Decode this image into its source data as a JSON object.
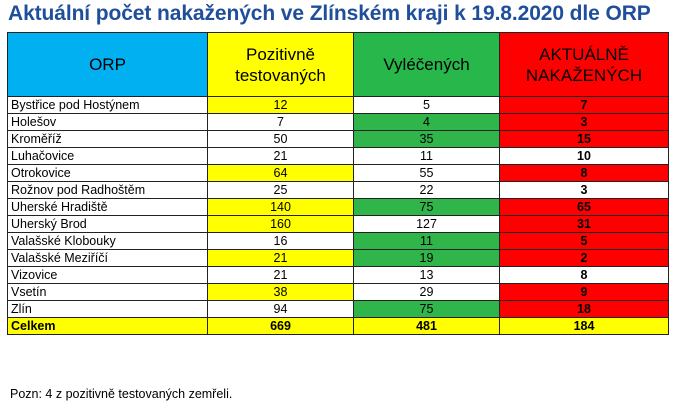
{
  "title": "Aktuální počet nakažených ve Zlínském kraji k 19.8.2020 dle ORP",
  "headers": {
    "orp": "ORP",
    "pozitivne_line1": "Pozitivně",
    "pozitivne_line2": "testovaných",
    "vylecenych": "Vyléčených",
    "aktualne_line1": "AKTUÁLNĚ",
    "aktualne_line2": "NAKAŽENÝCH"
  },
  "colors": {
    "yellow": "#ffff00",
    "green": "#2fb54a",
    "red": "#ff0000",
    "white": "#ffffff",
    "header_blue": "#00b0f0",
    "title_blue": "#1f4e9a"
  },
  "rows": [
    {
      "name": "Bystřice pod Hostýnem",
      "pozitivne": "12",
      "vylecenych": "5",
      "aktualne": "7",
      "pos_color": "yellow",
      "vyl_color": "white",
      "akt_color": "red"
    },
    {
      "name": "Holešov",
      "pozitivne": "7",
      "vylecenych": "4",
      "aktualne": "3",
      "pos_color": "white",
      "vyl_color": "green",
      "akt_color": "red"
    },
    {
      "name": "Kroměříž",
      "pozitivne": "50",
      "vylecenych": "35",
      "aktualne": "15",
      "pos_color": "white",
      "vyl_color": "green",
      "akt_color": "red"
    },
    {
      "name": "Luhačovice",
      "pozitivne": "21",
      "vylecenych": "11",
      "aktualne": "10",
      "pos_color": "white",
      "vyl_color": "white",
      "akt_color": "white"
    },
    {
      "name": "Otrokovice",
      "pozitivne": "64",
      "vylecenych": "55",
      "aktualne": "8",
      "pos_color": "yellow",
      "vyl_color": "white",
      "akt_color": "red"
    },
    {
      "name": "Rožnov pod Radhoštěm",
      "pozitivne": "25",
      "vylecenych": "22",
      "aktualne": "3",
      "pos_color": "white",
      "vyl_color": "white",
      "akt_color": "white"
    },
    {
      "name": "Uherské Hradiště",
      "pozitivne": "140",
      "vylecenych": "75",
      "aktualne": "65",
      "pos_color": "yellow",
      "vyl_color": "green",
      "akt_color": "red"
    },
    {
      "name": "Uherský Brod",
      "pozitivne": "160",
      "vylecenych": "127",
      "aktualne": "31",
      "pos_color": "yellow",
      "vyl_color": "white",
      "akt_color": "red"
    },
    {
      "name": "Valašské Klobouky",
      "pozitivne": "16",
      "vylecenych": "11",
      "aktualne": "5",
      "pos_color": "white",
      "vyl_color": "green",
      "akt_color": "red"
    },
    {
      "name": "Valašské Meziříčí",
      "pozitivne": "21",
      "vylecenych": "19",
      "aktualne": "2",
      "pos_color": "yellow",
      "vyl_color": "green",
      "akt_color": "red"
    },
    {
      "name": "Vizovice",
      "pozitivne": "21",
      "vylecenych": "13",
      "aktualne": "8",
      "pos_color": "white",
      "vyl_color": "white",
      "akt_color": "white"
    },
    {
      "name": "Vsetín",
      "pozitivne": "38",
      "vylecenych": "29",
      "aktualne": "9",
      "pos_color": "yellow",
      "vyl_color": "white",
      "akt_color": "red"
    },
    {
      "name": "Zlín",
      "pozitivne": "94",
      "vylecenych": "75",
      "aktualne": "18",
      "pos_color": "white",
      "vyl_color": "green",
      "akt_color": "red"
    }
  ],
  "total": {
    "name": "Celkem",
    "pozitivne": "669",
    "vylecenych": "481",
    "aktualne": "184"
  },
  "note": "Pozn: 4 z pozitivně testovaných zemřeli."
}
